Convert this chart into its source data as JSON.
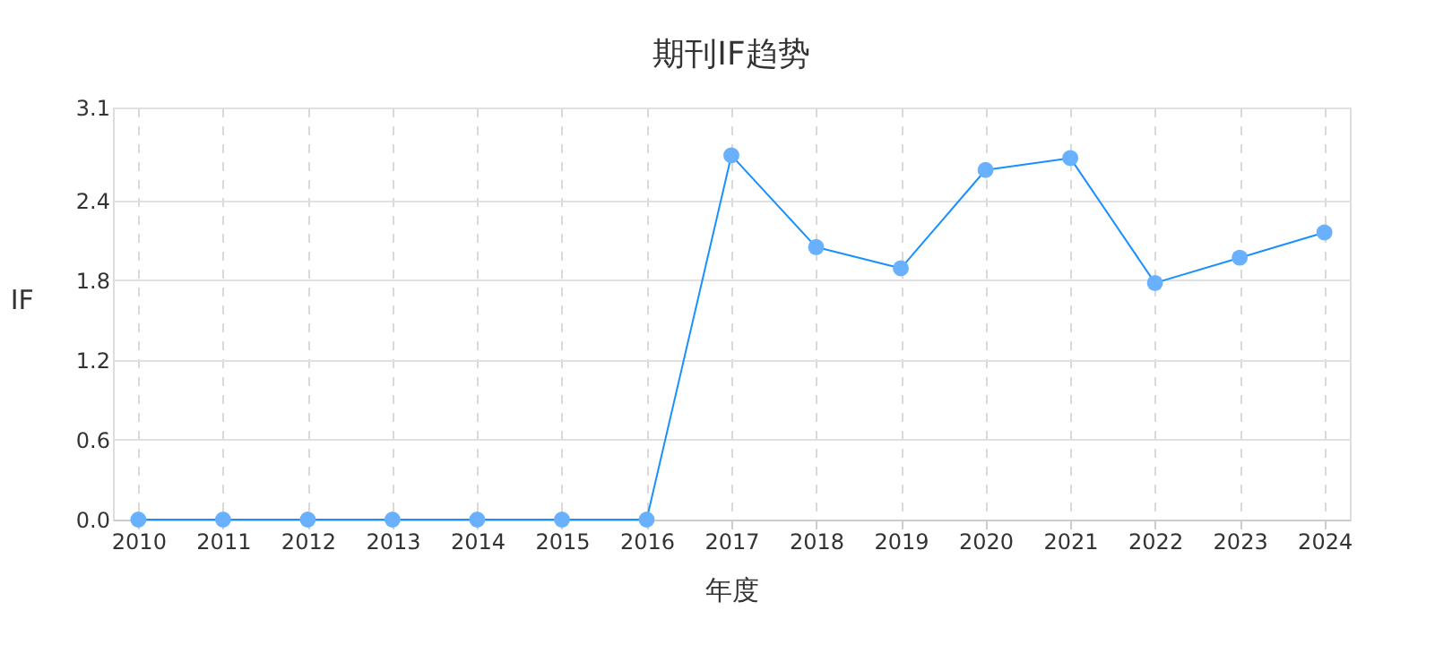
{
  "chart_data": {
    "type": "line",
    "title": "期刊IF趋势",
    "xlabel": "年度",
    "ylabel": "IF",
    "categories": [
      "2010",
      "2011",
      "2012",
      "2013",
      "2014",
      "2015",
      "2016",
      "2017",
      "2018",
      "2019",
      "2020",
      "2021",
      "2022",
      "2023",
      "2024"
    ],
    "series": [
      {
        "color": "#1890ff",
        "values": [
          0,
          0,
          0,
          0,
          0,
          0,
          0,
          2.74,
          2.05,
          1.89,
          2.63,
          2.72,
          1.78,
          1.97,
          2.16
        ]
      }
    ],
    "ylim": [
      0,
      3.1
    ],
    "yticks": [
      {
        "value": 0,
        "label": "0.0"
      },
      0.6,
      1.2,
      1.8,
      2.4,
      3.1
    ],
    "grid": true,
    "marker": "circle",
    "line_style": "solid"
  }
}
